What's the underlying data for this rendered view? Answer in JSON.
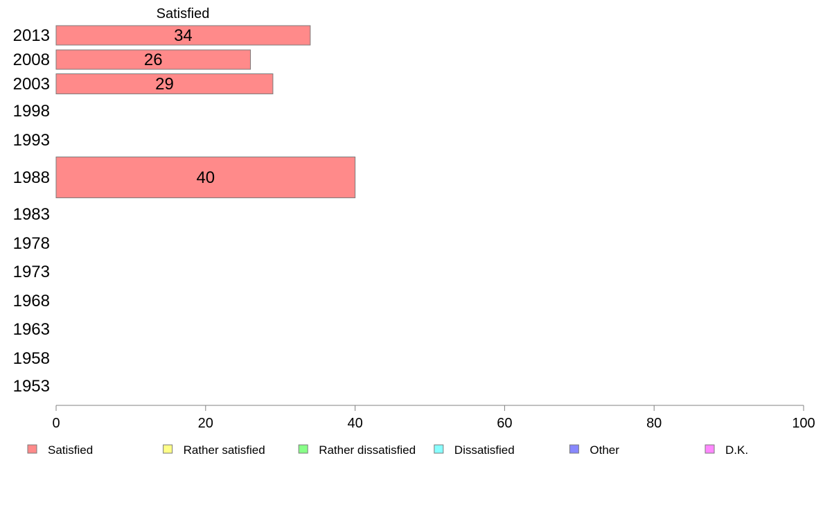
{
  "chart_data": {
    "type": "bar",
    "orientation": "horizontal",
    "stacked": true,
    "column_title": "Satisfied",
    "categories": [
      "2013",
      "2008",
      "2003",
      "1998",
      "1993",
      "1988",
      "1983",
      "1978",
      "1973",
      "1968",
      "1963",
      "1958",
      "1953"
    ],
    "series": [
      {
        "name": "Satisfied",
        "color": "#ff8a8a",
        "values": [
          34,
          26,
          29,
          null,
          null,
          40,
          null,
          null,
          null,
          null,
          null,
          null,
          null
        ]
      }
    ],
    "legend": [
      {
        "label": "Satisfied",
        "color": "#ff8a8a"
      },
      {
        "label": "Rather satisfied",
        "color": "#ffff88"
      },
      {
        "label": "Rather dissatisfied",
        "color": "#88ff88"
      },
      {
        "label": "Dissatisfied",
        "color": "#88ffff"
      },
      {
        "label": "Other",
        "color": "#8888ff"
      },
      {
        "label": "D.K.",
        "color": "#ff88ff"
      }
    ],
    "legend_position": "bottom",
    "xlim": [
      0,
      100
    ],
    "xticks": [
      0,
      20,
      40,
      60,
      80,
      100
    ],
    "grid": false
  }
}
